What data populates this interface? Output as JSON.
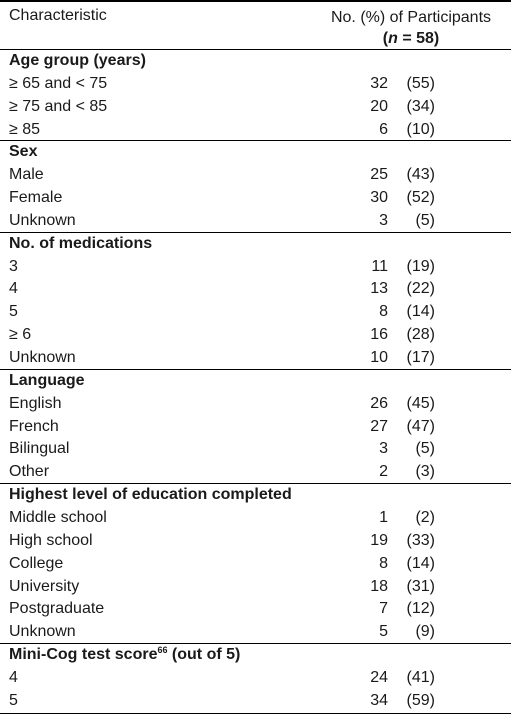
{
  "header": {
    "characteristic": "Characteristic",
    "participants_line1": "No. (%) of Participants",
    "participants_n_label": "n",
    "participants_n_value": "= 58"
  },
  "sections": [
    {
      "title": "Age group (years)",
      "rows": [
        {
          "label": "≥ 65 and < 75",
          "count": "32",
          "pct": "(55)"
        },
        {
          "label": "≥ 75 and < 85",
          "count": "20",
          "pct": "(34)"
        },
        {
          "label": "≥ 85",
          "count": "6",
          "pct": "(10)"
        }
      ]
    },
    {
      "title": "Sex",
      "rows": [
        {
          "label": "Male",
          "count": "25",
          "pct": "(43)"
        },
        {
          "label": "Female",
          "count": "30",
          "pct": "(52)"
        },
        {
          "label": "Unknown",
          "count": "3",
          "pct": "(5)"
        }
      ]
    },
    {
      "title": "No. of medications",
      "rows": [
        {
          "label": "3",
          "count": "11",
          "pct": "(19)"
        },
        {
          "label": "4",
          "count": "13",
          "pct": "(22)"
        },
        {
          "label": "5",
          "count": "8",
          "pct": "(14)"
        },
        {
          "label": "≥ 6",
          "count": "16",
          "pct": "(28)"
        },
        {
          "label": "Unknown",
          "count": "10",
          "pct": "(17)"
        }
      ]
    },
    {
      "title": "Language",
      "rows": [
        {
          "label": "English",
          "count": "26",
          "pct": "(45)"
        },
        {
          "label": "French",
          "count": "27",
          "pct": "(47)"
        },
        {
          "label": "Bilingual",
          "count": "3",
          "pct": "(5)"
        },
        {
          "label": "Other",
          "count": "2",
          "pct": "(3)"
        }
      ]
    },
    {
      "title": "Highest level of education completed",
      "rows": [
        {
          "label": "Middle school",
          "count": "1",
          "pct": "(2)"
        },
        {
          "label": "High school",
          "count": "19",
          "pct": "(33)"
        },
        {
          "label": "College",
          "count": "8",
          "pct": "(14)"
        },
        {
          "label": "University",
          "count": "18",
          "pct": "(31)"
        },
        {
          "label": "Postgraduate",
          "count": "7",
          "pct": "(12)"
        },
        {
          "label": "Unknown",
          "count": "5",
          "pct": "(9)"
        }
      ]
    },
    {
      "title": "Mini-Cog test score",
      "title_sup": "66",
      "title_suffix": " (out of 5)",
      "rows": [
        {
          "label": "4",
          "count": "24",
          "pct": "(41)"
        },
        {
          "label": "5",
          "count": "34",
          "pct": "(59)"
        }
      ]
    }
  ]
}
